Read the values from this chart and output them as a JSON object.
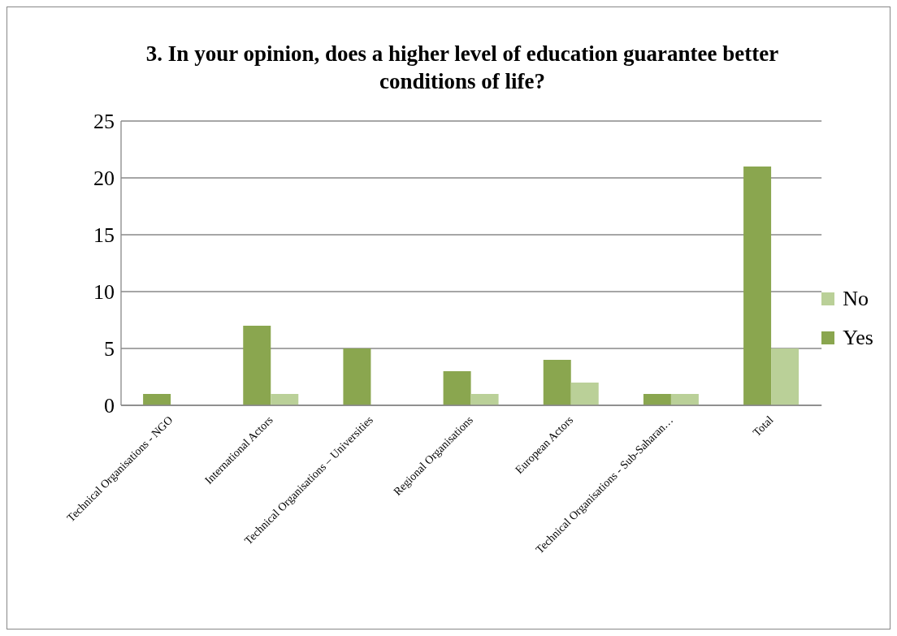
{
  "chart_data": {
    "type": "bar",
    "title": "3. In your opinion, does a higher level of education guarantee better conditions of life?",
    "categories": [
      "Technical Organisations - NGO",
      "International Actors",
      "Technical Organisations – Universities",
      "Regional Organisations",
      "European Actors",
      "Technical Organisations - Sub-Saharan…",
      "Total"
    ],
    "series": [
      {
        "name": "Yes",
        "color": "#8aa64f",
        "values": [
          1,
          7,
          5,
          3,
          4,
          1,
          21
        ]
      },
      {
        "name": "No",
        "color": "#bad098",
        "values": [
          0,
          1,
          0,
          1,
          2,
          1,
          5
        ]
      }
    ],
    "ylim": [
      0,
      25
    ],
    "yticks": [
      0,
      5,
      10,
      15,
      20,
      25
    ],
    "grid": "y",
    "legend": "right"
  }
}
